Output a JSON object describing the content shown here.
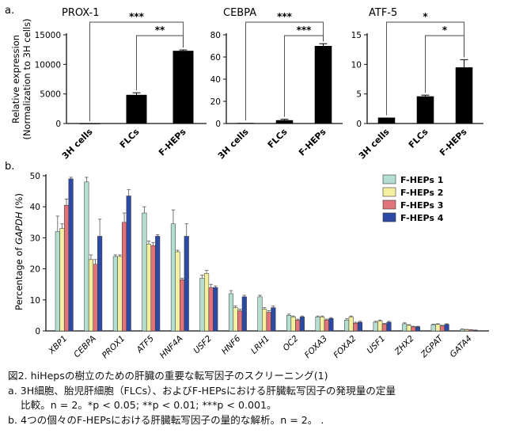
{
  "panel_labels": {
    "a": "a.",
    "b": "b."
  },
  "significance": {
    "p05": "*",
    "p01": "**",
    "p001": "***"
  },
  "chart_data": [
    {
      "type": "bar",
      "title": "PROX-1",
      "ylabel": "Relative expression",
      "ylabel2": "(Normalization to 3H cells)",
      "categories": [
        "3H cells",
        "FLCs",
        "F-HEPs"
      ],
      "values": [
        1,
        4850,
        12300
      ],
      "errors": [
        0,
        350,
        150
      ],
      "ylim": [
        0,
        15000
      ],
      "yticks": [
        0,
        5000,
        10000,
        15000
      ],
      "comparisons": [
        {
          "from": 0,
          "to": 2,
          "label": "***"
        },
        {
          "from": 1,
          "to": 2,
          "label": "**"
        }
      ]
    },
    {
      "type": "bar",
      "title": "CEBPA",
      "categories": [
        "3H cells",
        "FLCs",
        "F-HEPs"
      ],
      "values": [
        0.5,
        3,
        70
      ],
      "errors": [
        0,
        0.8,
        2
      ],
      "ylim": [
        0,
        80
      ],
      "yticks": [
        0,
        20,
        40,
        60,
        80
      ],
      "comparisons": [
        {
          "from": 0,
          "to": 2,
          "label": "***"
        },
        {
          "from": 1,
          "to": 2,
          "label": "***"
        }
      ]
    },
    {
      "type": "bar",
      "title": "ATF-5",
      "categories": [
        "3H cells",
        "FLCs",
        "F-HEPs"
      ],
      "values": [
        1,
        4.6,
        9.5
      ],
      "errors": [
        0,
        0.2,
        1.3
      ],
      "ylim": [
        0,
        15
      ],
      "yticks": [
        0,
        5,
        10,
        15
      ],
      "comparisons": [
        {
          "from": 0,
          "to": 2,
          "label": "*"
        },
        {
          "from": 1,
          "to": 2,
          "label": "*"
        }
      ]
    },
    {
      "type": "bar",
      "title": "",
      "ylabel_prefix": "Percentage of ",
      "ylabel_italic": "GAPDH",
      "ylabel_suffix": " (%)",
      "categories": [
        "XBP1",
        "CEBPA",
        "PROX1",
        "ATF5",
        "HNF4A",
        "USF2",
        "HNF6",
        "LRH1",
        "OC2",
        "FOXA3",
        "FOXA2",
        "USF1",
        "ZHX2",
        "ZGPAT",
        "GATA4"
      ],
      "ylim": [
        0,
        50
      ],
      "yticks": [
        0,
        10,
        20,
        30,
        40,
        50
      ],
      "series": [
        {
          "name": "F-HEPs 1",
          "color": "#b5ded3",
          "values": [
            32,
            48,
            24,
            38,
            34.5,
            17,
            12,
            11,
            5,
            4.5,
            3.5,
            2.8,
            2.3,
            2,
            0.5
          ],
          "errors": [
            5,
            1.5,
            0.5,
            2,
            4.5,
            1,
            1,
            0.5,
            0.4,
            0.3,
            0.4,
            0.3,
            0.3,
            0.2,
            0.1
          ]
        },
        {
          "name": "F-HEPs 2",
          "color": "#f5f0a0",
          "values": [
            33,
            23,
            24,
            28,
            25.5,
            18.5,
            7.5,
            7,
            4.5,
            4.5,
            4.5,
            3.2,
            1.8,
            2.1,
            0.4
          ],
          "errors": [
            1.5,
            1.5,
            0.5,
            1,
            0.5,
            1,
            0.5,
            0.5,
            0.3,
            0.3,
            0.3,
            0.3,
            0.2,
            0.2,
            0.1
          ]
        },
        {
          "name": "F-HEPs 3",
          "color": "#e0747a",
          "values": [
            40.5,
            21.5,
            35,
            27.5,
            16.5,
            14,
            6.5,
            6,
            3.5,
            3.5,
            2.5,
            2.2,
            1.3,
            1.6,
            0.3
          ],
          "errors": [
            2,
            1.5,
            3,
            1,
            0.5,
            1,
            0.5,
            0.5,
            0.3,
            0.3,
            0.3,
            0.2,
            0.2,
            0.2,
            0.1
          ]
        },
        {
          "name": "F-HEPs 4",
          "color": "#2c4aa3",
          "values": [
            49,
            30.5,
            43.5,
            30.5,
            30.5,
            14,
            11,
            7.5,
            4.5,
            4,
            2.8,
            2.8,
            1.3,
            2.1,
            0.2
          ],
          "errors": [
            0.5,
            5.5,
            2,
            0.5,
            4,
            0.5,
            0.5,
            0.5,
            0.3,
            0.3,
            0.3,
            0.3,
            0.2,
            0.2,
            0.1
          ]
        }
      ]
    }
  ],
  "caption": {
    "title": "図2. hiHepsの樹立のための肝臓の重要な転写因子のスクリーニング(1)",
    "line_a1": "a.  3H細胞、胎児肝細胞（FLCs）、およびF-HEPsにおける肝臓転写因子の発現量の定量",
    "line_a2": "比較。n = 2。*p < 0.05; **p < 0.01; ***p < 0.001。",
    "line_b": "b.  4つの個々のF-HEPsにおける肝臓転写因子の量的な解析。n = 2。 ."
  }
}
